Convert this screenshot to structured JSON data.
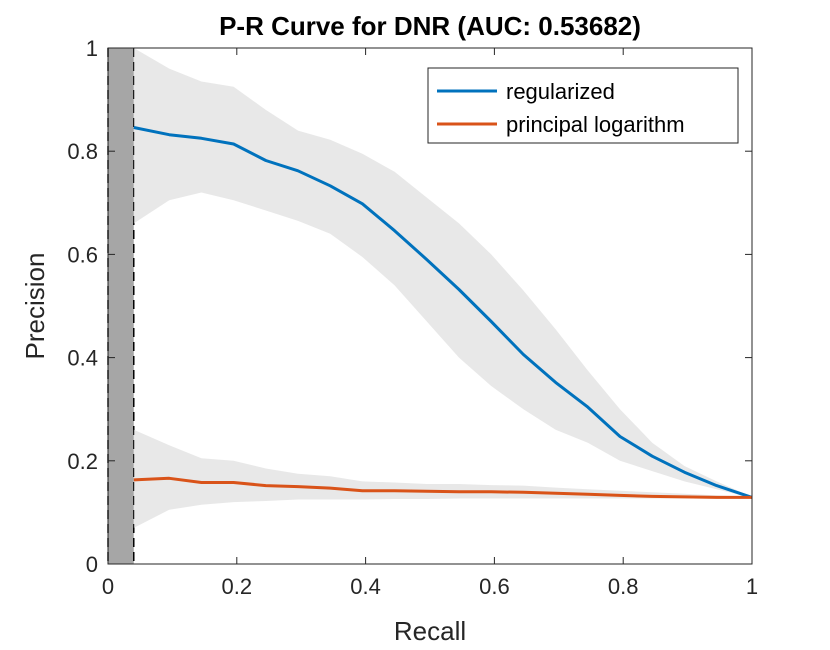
{
  "chart_data": {
    "type": "line",
    "title": "P-R Curve for DNR (AUC: 0.53682)",
    "xlabel": "Recall",
    "ylabel": "Precision",
    "xlim": [
      0,
      1
    ],
    "ylim": [
      0,
      1
    ],
    "xticks": [
      0,
      0.2,
      0.4,
      0.6,
      0.8,
      1
    ],
    "xtick_labels": [
      "0",
      "0.2",
      "0.4",
      "0.6",
      "0.8",
      "1"
    ],
    "yticks": [
      0,
      0.2,
      0.4,
      0.6,
      0.8,
      1
    ],
    "ytick_labels": [
      "0",
      "0.2",
      "0.4",
      "0.6",
      "0.8",
      "1"
    ],
    "grid": false,
    "legend_position": "top-right",
    "shaded_region": {
      "x_from": 0,
      "x_to": 0.04,
      "color": "#a6a6a6"
    },
    "x": [
      0.04,
      0.095,
      0.145,
      0.195,
      0.245,
      0.295,
      0.345,
      0.395,
      0.445,
      0.495,
      0.545,
      0.595,
      0.645,
      0.695,
      0.745,
      0.795,
      0.845,
      0.895,
      0.945,
      1.0
    ],
    "series": [
      {
        "name": "regularized",
        "color": "#0072BD",
        "values": [
          0.846,
          0.832,
          0.825,
          0.814,
          0.782,
          0.762,
          0.733,
          0.698,
          0.646,
          0.59,
          0.532,
          0.47,
          0.406,
          0.352,
          0.304,
          0.247,
          0.209,
          0.178,
          0.152,
          0.129
        ],
        "band_upper": [
          1.0,
          0.96,
          0.935,
          0.925,
          0.88,
          0.84,
          0.822,
          0.795,
          0.76,
          0.71,
          0.66,
          0.6,
          0.53,
          0.455,
          0.375,
          0.3,
          0.235,
          0.19,
          0.16,
          0.13
        ],
        "band_lower": [
          0.66,
          0.705,
          0.72,
          0.705,
          0.685,
          0.665,
          0.64,
          0.595,
          0.54,
          0.47,
          0.4,
          0.345,
          0.3,
          0.26,
          0.235,
          0.2,
          0.18,
          0.16,
          0.145,
          0.128
        ]
      },
      {
        "name": "principal logarithm",
        "color": "#D95319",
        "values": [
          0.163,
          0.166,
          0.158,
          0.158,
          0.152,
          0.15,
          0.147,
          0.142,
          0.142,
          0.141,
          0.14,
          0.14,
          0.139,
          0.137,
          0.135,
          0.133,
          0.131,
          0.13,
          0.129,
          0.129
        ],
        "band_upper": [
          0.26,
          0.23,
          0.205,
          0.2,
          0.185,
          0.175,
          0.17,
          0.16,
          0.158,
          0.155,
          0.155,
          0.153,
          0.152,
          0.148,
          0.145,
          0.142,
          0.139,
          0.136,
          0.133,
          0.13
        ],
        "band_lower": [
          0.07,
          0.105,
          0.115,
          0.12,
          0.122,
          0.125,
          0.125,
          0.125,
          0.126,
          0.126,
          0.127,
          0.127,
          0.127,
          0.127,
          0.127,
          0.127,
          0.127,
          0.127,
          0.127,
          0.127
        ]
      }
    ]
  }
}
